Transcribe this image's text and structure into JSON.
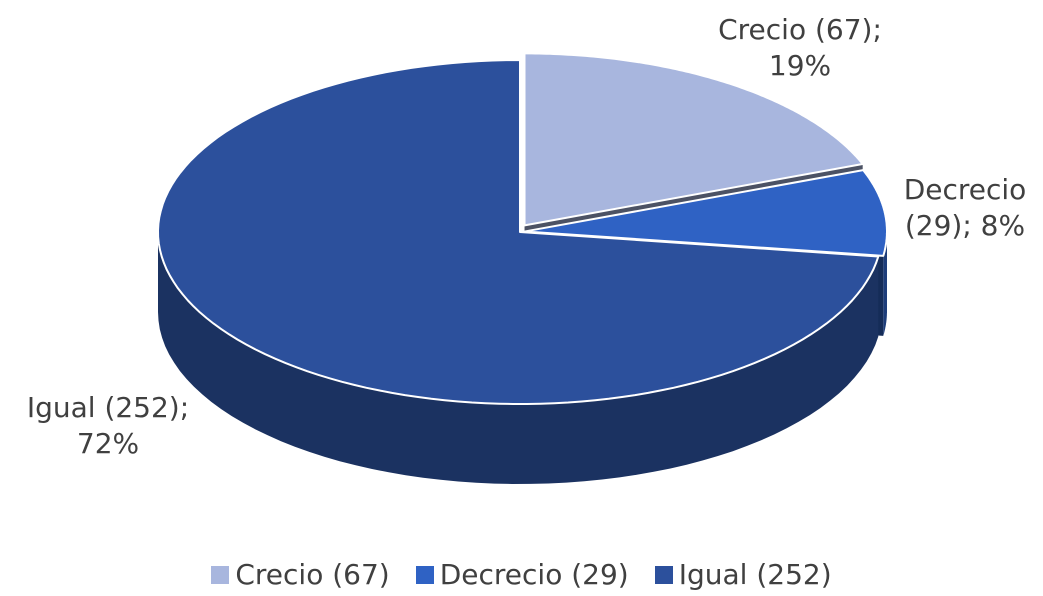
{
  "chart_data": {
    "type": "pie",
    "three_d": true,
    "categories": [
      "Crecio (67)",
      "Decrecio (29)",
      "Igual (252)"
    ],
    "values": [
      19,
      8,
      72
    ],
    "value_labels": [
      "Crecio (67); 19%",
      "Decrecio (29); 8%",
      "Igual (252); 72%"
    ],
    "colors": [
      "#a8b6de",
      "#2f62c4",
      "#2c509c"
    ],
    "legend": "bottom"
  }
}
